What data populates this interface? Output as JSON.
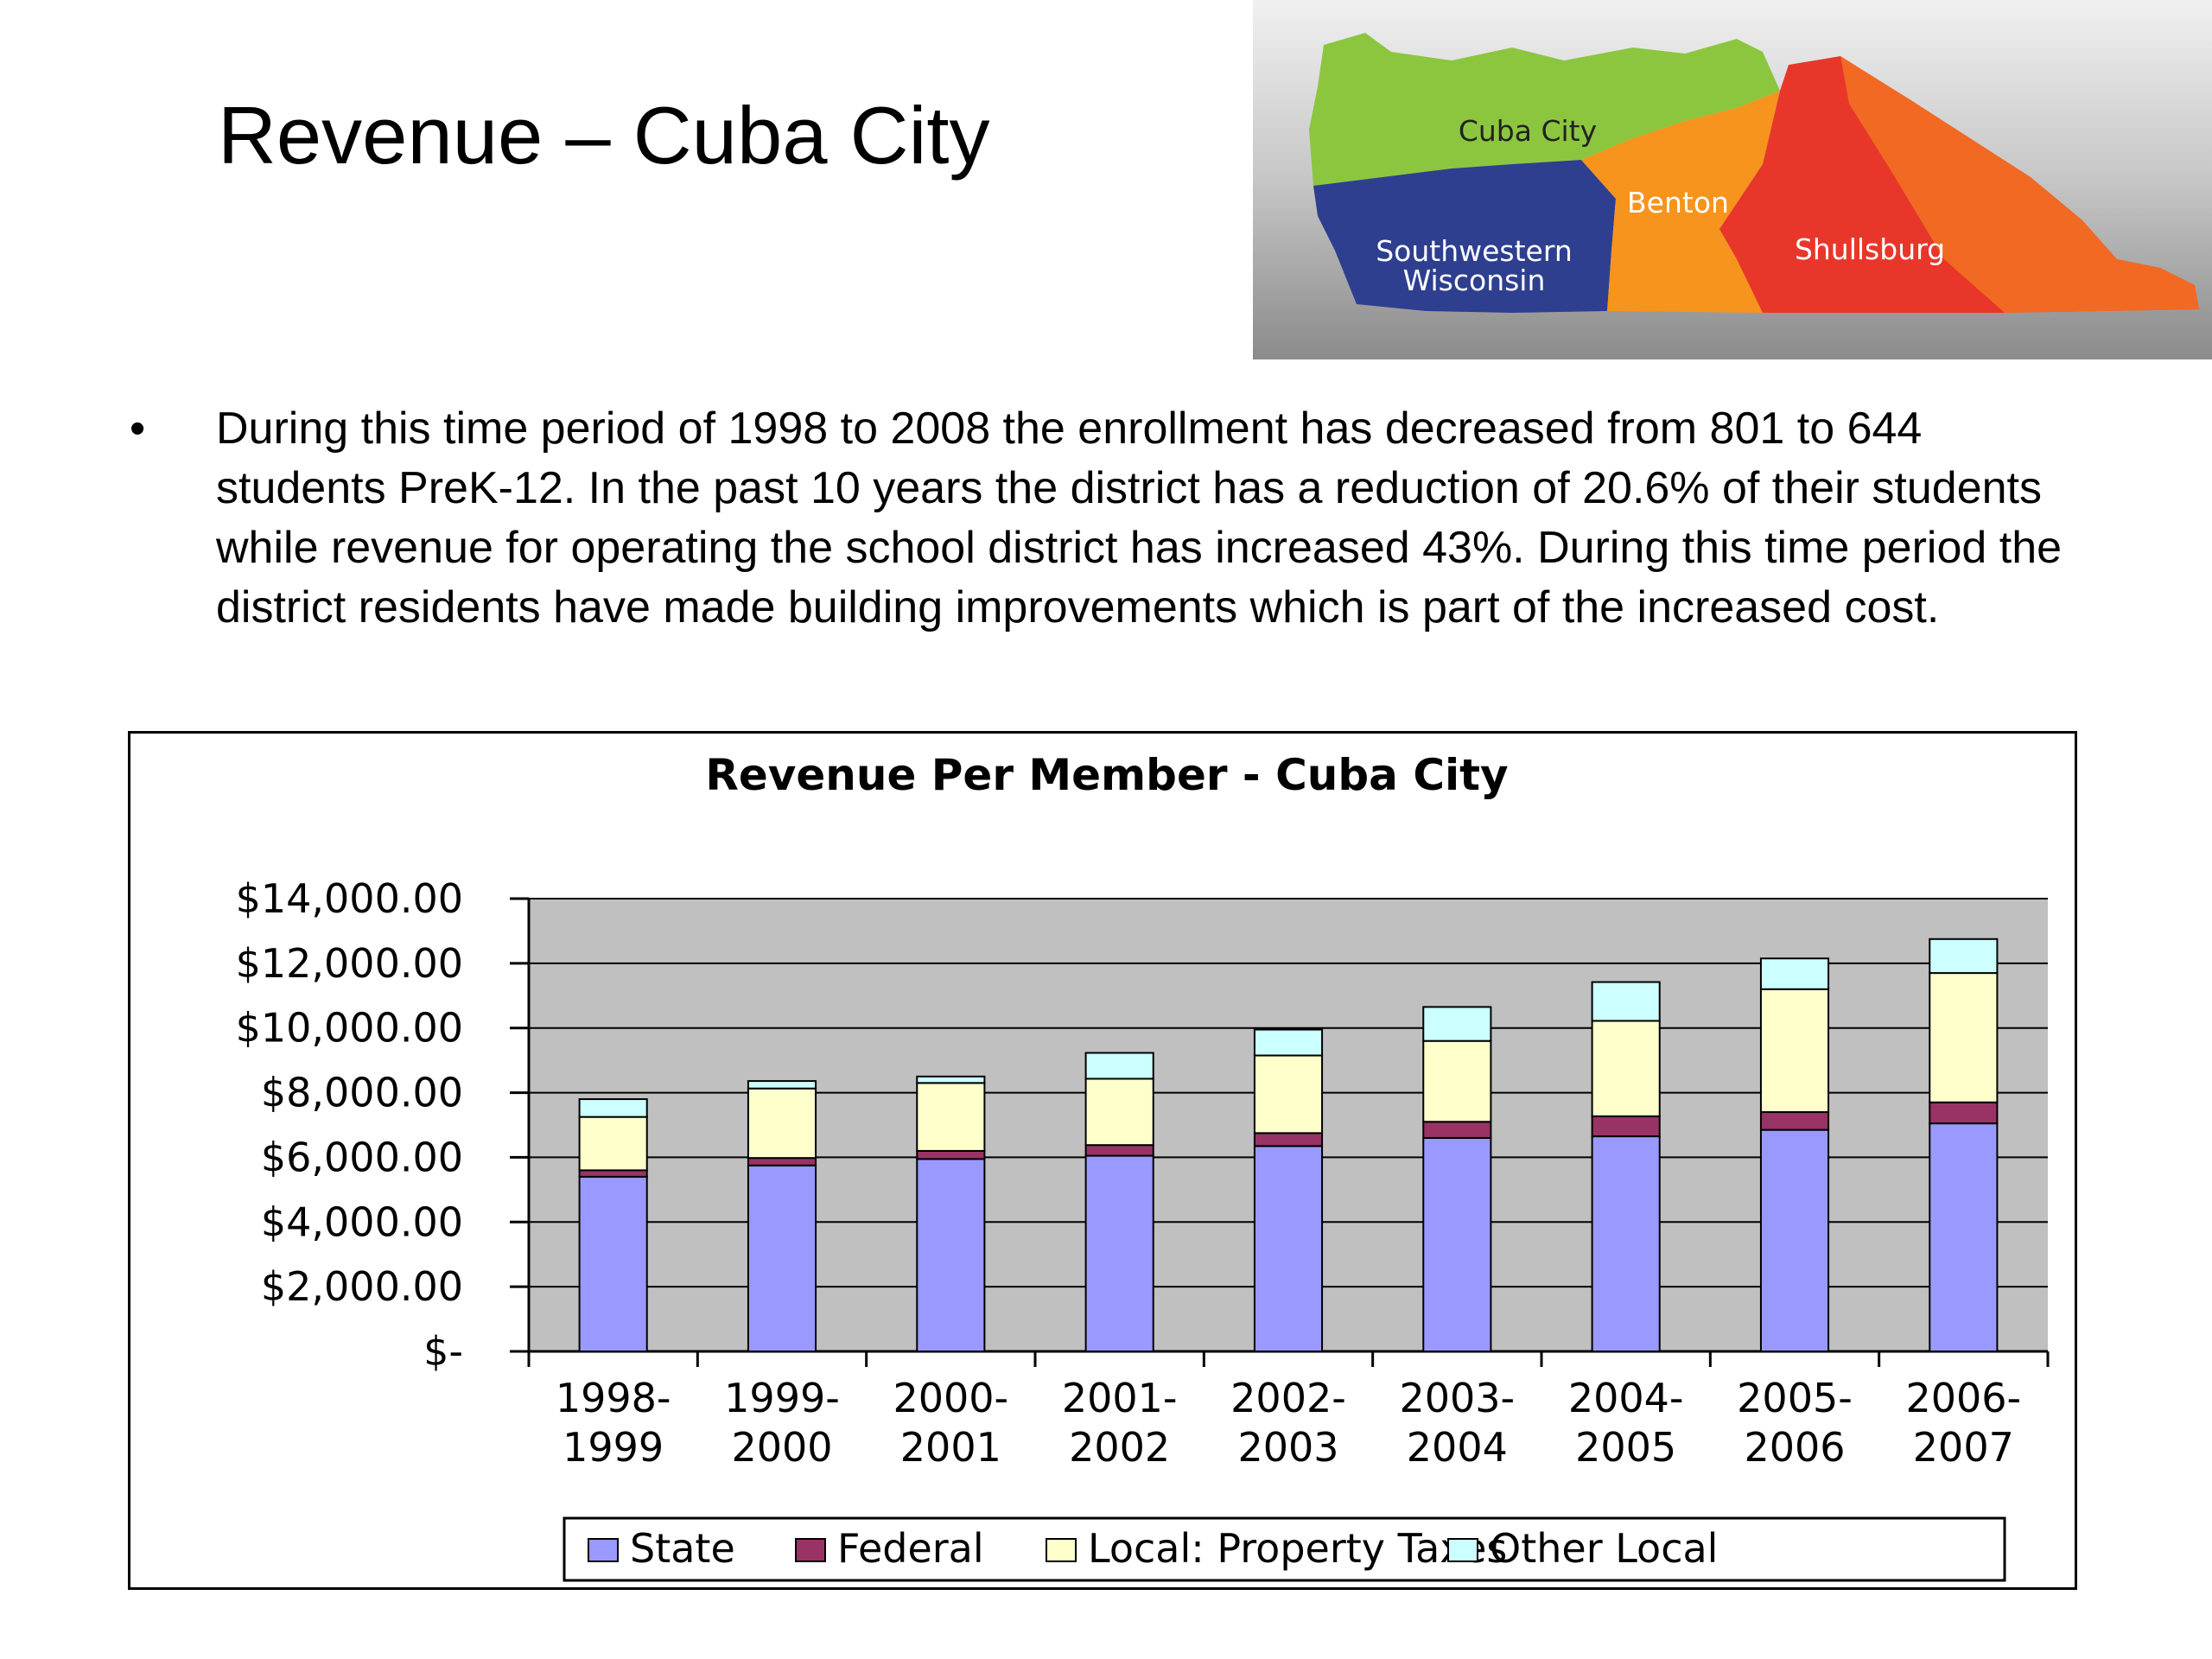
{
  "slide": {
    "title": "Revenue – Cuba City",
    "bullet_symbol": "•",
    "bullet_text": "During this time period of 1998 to 2008 the enrollment has decreased from 801 to 644 students PreK-12.  In the past 10 years the district has a reduction of 20.6% of their students while revenue for operating the school district has increased 43%.  During this time period the district residents have made building improvements which is part of the increased cost."
  },
  "map": {
    "regions": [
      {
        "label": "Cuba City",
        "color": "#8cc63f"
      },
      {
        "label": "Southwestern Wisconsin",
        "lines": [
          "Southwestern",
          "Wisconsin"
        ],
        "color": "#2e3f8f"
      },
      {
        "label": "Benton",
        "color": "#f7941d"
      },
      {
        "label": "Shullsburg",
        "color": "#e8372a"
      }
    ]
  },
  "chart_data": {
    "type": "bar",
    "stacked": true,
    "title": "Revenue Per Member - Cuba City",
    "categories": [
      "1998-1999",
      "1999-2000",
      "2000-2001",
      "2001-2002",
      "2002-2003",
      "2003-2004",
      "2004-2005",
      "2005-2006",
      "2006-2007"
    ],
    "category_lines": [
      [
        "1998-",
        "1999"
      ],
      [
        "1999-",
        "2000"
      ],
      [
        "2000-",
        "2001"
      ],
      [
        "2001-",
        "2002"
      ],
      [
        "2002-",
        "2003"
      ],
      [
        "2003-",
        "2004"
      ],
      [
        "2004-",
        "2005"
      ],
      [
        "2005-",
        "2006"
      ],
      [
        "2006-",
        "2007"
      ]
    ],
    "series": [
      {
        "name": "State",
        "color": "#9999ff",
        "values": [
          5400,
          5750,
          5950,
          6050,
          6350,
          6600,
          6650,
          6850,
          7050
        ]
      },
      {
        "name": "Federal",
        "color": "#993366",
        "values": [
          200,
          230,
          250,
          330,
          400,
          500,
          620,
          550,
          650
        ]
      },
      {
        "name": "Local: Property Taxes",
        "color": "#ffffcc",
        "values": [
          1650,
          2150,
          2100,
          2050,
          2400,
          2500,
          2950,
          3800,
          4000
        ]
      },
      {
        "name": "Other Local",
        "color": "#ccffff",
        "values": [
          550,
          230,
          200,
          800,
          800,
          1050,
          1200,
          950,
          1050
        ]
      }
    ],
    "ylim": [
      0,
      14000
    ],
    "y_ticks": [
      0,
      2000,
      4000,
      6000,
      8000,
      10000,
      12000,
      14000
    ],
    "y_tick_labels": [
      "$-",
      "$2,000.00",
      "$4,000.00",
      "$6,000.00",
      "$8,000.00",
      "$10,000.00",
      "$12,000.00",
      "$14,000.00"
    ],
    "grid": true,
    "plot_background": "#c0c0c0",
    "legend_position": "bottom"
  }
}
